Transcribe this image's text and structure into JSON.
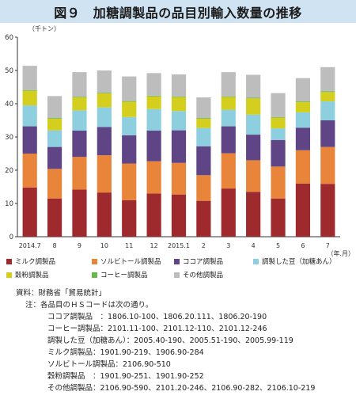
{
  "title": "図９　加糖調製品の品目別輸入数量の推移",
  "chart_data": {
    "type": "stacked-bar",
    "unit_label": "（千トン）",
    "x_unit_label": "（年.月）",
    "categories": [
      "2014.7",
      "8",
      "9",
      "10",
      "11",
      "12",
      "2015.1",
      "2",
      "3",
      "4",
      "5",
      "6",
      "7"
    ],
    "ylim": [
      0,
      60
    ],
    "yticks": [
      0,
      10,
      20,
      30,
      40,
      50,
      60
    ],
    "grid": false,
    "legend_position": "bottom",
    "series": [
      {
        "name": "ミルク調製品",
        "color": "#9e2a2e",
        "values": [
          14.8,
          11.5,
          14.2,
          13.3,
          11.0,
          13.0,
          12.7,
          10.8,
          14.5,
          13.5,
          11.5,
          16.0,
          15.9
        ]
      },
      {
        "name": "ソルビトール調製品",
        "color": "#e8853a",
        "values": [
          10.2,
          8.9,
          9.8,
          11.2,
          11.0,
          9.7,
          9.5,
          7.7,
          10.6,
          9.5,
          9.6,
          10.0,
          11.1
        ]
      },
      {
        "name": "ココア調製品",
        "color": "#5f4486",
        "values": [
          8.2,
          6.6,
          7.9,
          8.5,
          8.5,
          9.2,
          9.8,
          8.7,
          8.1,
          7.7,
          8.0,
          6.8,
          8.0
        ]
      },
      {
        "name": "調製した豆（加糖あん）",
        "color": "#8ecfdf",
        "values": [
          6.3,
          5.0,
          6.1,
          5.9,
          5.5,
          6.5,
          5.8,
          5.5,
          5.0,
          6.0,
          3.5,
          4.6,
          5.7
        ]
      },
      {
        "name": "穀粉調製品",
        "color": "#d4cf1e",
        "values": [
          4.4,
          3.5,
          3.9,
          4.2,
          4.6,
          3.8,
          4.2,
          2.8,
          3.8,
          4.9,
          3.2,
          3.1,
          2.8
        ]
      },
      {
        "name": "コーヒー調製品",
        "color": "#67b94b",
        "values": [
          0.2,
          0.2,
          0.2,
          0.2,
          0.2,
          0.2,
          0.2,
          0.2,
          0.2,
          0.2,
          0.2,
          0.2,
          0.2
        ]
      },
      {
        "name": "その他調製品",
        "color": "#bdbdbd",
        "values": [
          7.3,
          6.6,
          7.4,
          6.7,
          7.4,
          6.8,
          6.6,
          6.2,
          7.3,
          6.9,
          7.2,
          7.0,
          7.3
        ]
      }
    ]
  },
  "notes": {
    "source_label": "資料：",
    "source_text": "財務省「貿易統計」",
    "note_label": "注：",
    "note_text": "各品目のＨＳコードは次の通り。",
    "items": [
      "ココア調製品　：1806.10-100、1806.20.111、1806.20-190",
      "コーヒー調製品：2101.11-100、2101.12-110、2101.12-246",
      "調製した豆（加糖あん）：2005.40-190、2005.51-190、2005.99-119",
      "ミルク調製品：1901.90-219、1906.90-284",
      "ソルビトール調製品：2106.90-510",
      "穀粉調製品　：1901.90-251、1901.90-252",
      "その他調製品：2106.90-590、2101.20-246、2106.90-282、2106.10-219"
    ]
  }
}
